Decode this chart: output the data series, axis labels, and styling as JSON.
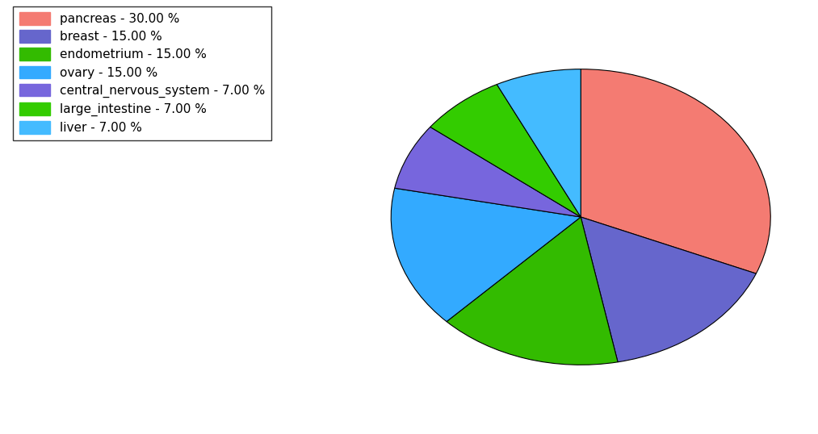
{
  "labels": [
    "pancreas",
    "breast",
    "endometrium",
    "ovary",
    "central_nervous_system",
    "large_intestine",
    "liver"
  ],
  "values": [
    30.0,
    15.0,
    15.0,
    15.0,
    7.0,
    7.0,
    7.0
  ],
  "colors": [
    "#F47B72",
    "#6666CC",
    "#33BB00",
    "#33AAFF",
    "#7766DD",
    "#33CC00",
    "#44BBFF"
  ],
  "legend_labels": [
    "pancreas - 30.00 %",
    "breast - 15.00 %",
    "endometrium - 15.00 %",
    "ovary - 15.00 %",
    "central_nervous_system - 7.00 %",
    "large_intestine - 7.00 %",
    "liver - 7.00 %"
  ],
  "startangle": 90,
  "background_color": "#ffffff",
  "figsize": [
    10.13,
    5.38
  ],
  "dpi": 100
}
